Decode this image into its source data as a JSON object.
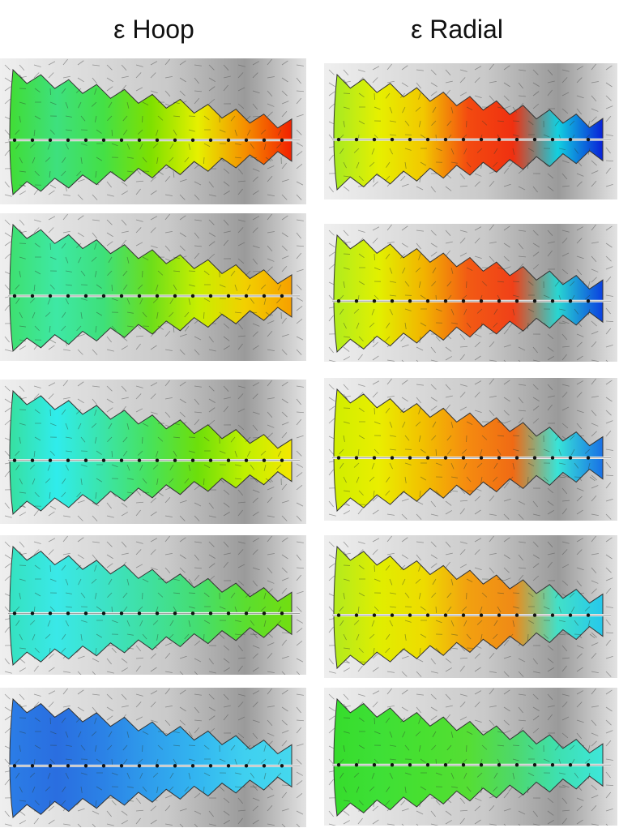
{
  "columns": [
    {
      "title": "ε Hoop"
    },
    {
      "title": "ε Radial"
    }
  ],
  "panels": [
    {
      "column": "hoop",
      "row": 1,
      "stops": [
        "#41dd35",
        "#3ee07e",
        "#44e046",
        "#7ee000",
        "#e6f000",
        "#f59000",
        "#f22000"
      ]
    },
    {
      "column": "hoop",
      "row": 2,
      "stops": [
        "#3ee070",
        "#3ee8a5",
        "#3ee07a",
        "#6cde1a",
        "#c8ef00",
        "#f2d000",
        "#f7a000"
      ]
    },
    {
      "column": "hoop",
      "row": 3,
      "stops": [
        "#37e0a0",
        "#30ecec",
        "#3be4a8",
        "#48e25a",
        "#6ddf0a",
        "#bff000",
        "#f5e800"
      ]
    },
    {
      "column": "hoop",
      "row": 4,
      "stops": [
        "#35e2c0",
        "#3ae8e8",
        "#3de2c6",
        "#40e09e",
        "#45de70",
        "#5ade30",
        "#72de10"
      ]
    },
    {
      "column": "hoop",
      "row": 5,
      "stops": [
        "#2b7de6",
        "#2a6ee0",
        "#2b82e6",
        "#2f9eec",
        "#33b6f0",
        "#3fd0f0",
        "#45d8ee"
      ]
    },
    {
      "column": "radial",
      "row": 1,
      "stops": [
        "#a6ea22",
        "#e6f000",
        "#f2c800",
        "#f34a10",
        "#f03010",
        "#12d0e0",
        "#0820d8"
      ]
    },
    {
      "column": "radial",
      "row": 2,
      "stops": [
        "#b0ec1e",
        "#e2f000",
        "#f2b400",
        "#f25a14",
        "#f04018",
        "#28d6d2",
        "#0a40e0"
      ]
    },
    {
      "column": "radial",
      "row": 3,
      "stops": [
        "#d0ee00",
        "#eaee00",
        "#f2c000",
        "#f58a10",
        "#f06a14",
        "#38e4d8",
        "#1870e6"
      ]
    },
    {
      "column": "radial",
      "row": 4,
      "stops": [
        "#b2ea1e",
        "#e0ee00",
        "#eedc00",
        "#f2a010",
        "#f08a16",
        "#42e0c8",
        "#26c8ec"
      ]
    },
    {
      "column": "radial",
      "row": 5,
      "stops": [
        "#36dc2c",
        "#3ee036",
        "#48e030",
        "#55de34",
        "#4ed86a",
        "#3ee0b0",
        "#3ee6da"
      ]
    }
  ]
}
